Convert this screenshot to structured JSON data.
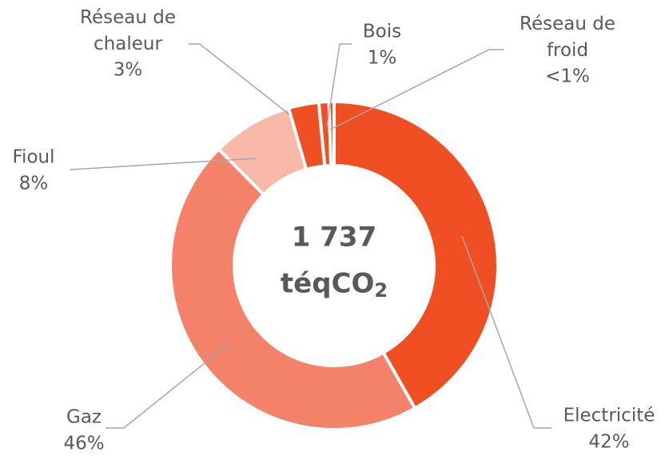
{
  "chart_data": {
    "type": "donut",
    "center_label": [
      "1 737",
      "téqCO₂"
    ],
    "categories": [
      "Electricité",
      "Gaz",
      "Fioul",
      "Réseau de chaleur",
      "Bois",
      "Réseau de froid"
    ],
    "values": [
      42,
      46,
      8,
      3,
      1,
      0.5
    ],
    "value_labels": [
      "42%",
      "46%",
      "8%",
      "3%",
      "1%",
      "<1%"
    ],
    "colors": [
      "#f04e23",
      "#f4826a",
      "#f8b9a8",
      "#f04e23",
      "#f04e23",
      "#f04e23"
    ]
  }
}
